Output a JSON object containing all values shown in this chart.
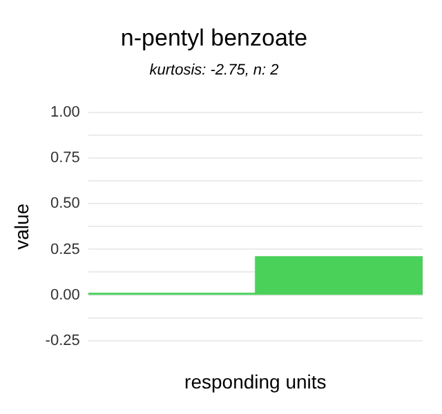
{
  "chart_data": {
    "type": "bar",
    "title": "n-pentyl benzoate",
    "subtitle": "kurtosis: -2.75, n: 2",
    "xlabel": "responding units",
    "ylabel": "value",
    "categories": [
      null,
      null
    ],
    "values": [
      0.01,
      0.21
    ],
    "color": "#4ad15a",
    "ylim": [
      -0.25,
      1
    ],
    "yticks": [
      {
        "value": -0.25,
        "label": "-0.25"
      },
      {
        "value": -0.125,
        "label": null
      },
      {
        "value": 0,
        "label": "0.00"
      },
      {
        "value": 0.125,
        "label": null
      },
      {
        "value": 0.25,
        "label": "0.25"
      },
      {
        "value": 0.375,
        "label": null
      },
      {
        "value": 0.5,
        "label": "0.50"
      },
      {
        "value": 0.625,
        "label": null
      },
      {
        "value": 0.75,
        "label": "0.75"
      },
      {
        "value": 0.875,
        "label": null
      },
      {
        "value": 1,
        "label": "1.00"
      }
    ],
    "grid": "y"
  }
}
